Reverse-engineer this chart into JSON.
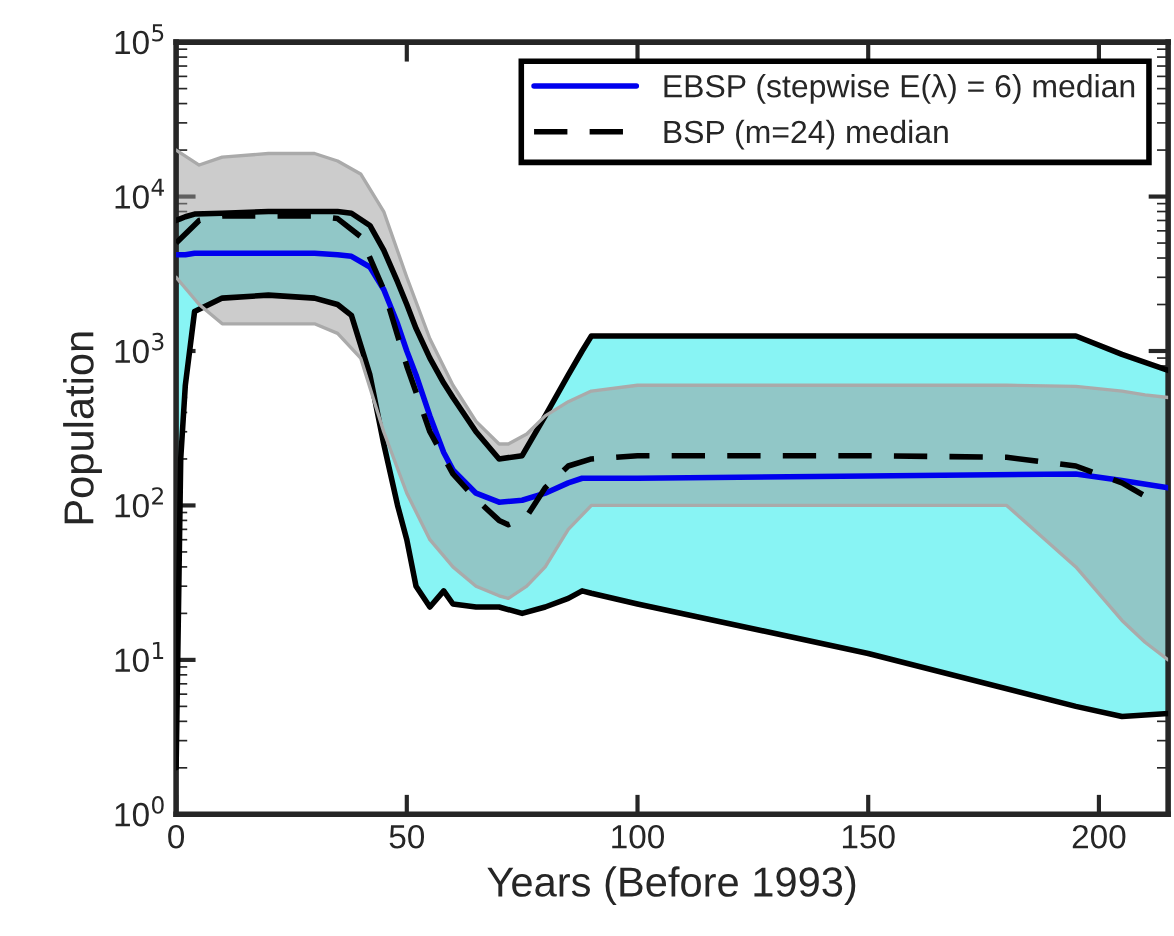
{
  "chart_data": {
    "type": "line",
    "xlabel": "Years (Before 1993)",
    "ylabel": "Population",
    "log": "y",
    "xlim": [
      0,
      215
    ],
    "xticks": [
      0,
      50,
      100,
      150,
      200
    ],
    "ylim": [
      1,
      100000
    ],
    "yticks": [
      {
        "value": 1,
        "label": "10$^{0}$"
      },
      {
        "value": 10,
        "label": "10$^{1}$"
      },
      {
        "value": 100,
        "label": "10$^{2}$"
      },
      {
        "value": 1000,
        "label": "10$^{3}$"
      },
      {
        "value": 10000,
        "label": "10$^{4}$"
      },
      {
        "value": 100000,
        "label": "10$^{5}$"
      }
    ],
    "grid": false,
    "legend": "top right",
    "series": [
      {
        "name": "EBSP (stepwise E(λ) = 6) median",
        "color": "#0000ee",
        "line_style": "solid",
        "x": [
          0,
          1,
          2,
          4,
          10,
          20,
          30,
          35,
          38,
          42,
          45,
          48,
          50,
          52,
          55,
          58,
          60,
          65,
          70,
          75,
          80,
          85,
          88,
          90,
          100,
          150,
          195,
          205,
          215
        ],
        "values": [
          4200,
          4200,
          4200,
          4300,
          4300,
          4300,
          4300,
          4200,
          4100,
          3500,
          2500,
          1500,
          1000,
          700,
          380,
          220,
          170,
          120,
          105,
          108,
          120,
          140,
          150,
          150,
          150,
          155,
          160,
          145,
          130
        ],
        "upper": [
          7000,
          7200,
          7400,
          7700,
          7800,
          8000,
          8000,
          8000,
          7800,
          6500,
          4500,
          2800,
          2000,
          1400,
          900,
          620,
          500,
          300,
          200,
          210,
          380,
          700,
          1000,
          1250,
          1250,
          1250,
          1250,
          950,
          750
        ],
        "lower": [
          2,
          200,
          600,
          1800,
          2200,
          2300,
          2200,
          2000,
          1700,
          700,
          250,
          100,
          60,
          30,
          22,
          28,
          23,
          22,
          22,
          20,
          22,
          25,
          28,
          27,
          23,
          11,
          5,
          4.3,
          4.5
        ]
      },
      {
        "name": "BSP (m=24) median",
        "color": "#000000",
        "line_style": "dashed",
        "x": [
          0,
          5,
          10,
          20,
          30,
          35,
          40,
          45,
          50,
          55,
          60,
          65,
          70,
          72,
          76,
          80,
          85,
          90,
          100,
          150,
          180,
          195,
          205,
          210,
          215
        ],
        "values": [
          5000,
          7000,
          7500,
          7500,
          7500,
          7200,
          5500,
          2500,
          800,
          300,
          160,
          110,
          80,
          75,
          85,
          130,
          180,
          200,
          210,
          210,
          205,
          180,
          140,
          115,
          null
        ],
        "upper": [
          20000,
          16000,
          18000,
          19000,
          19000,
          17000,
          14000,
          8000,
          3000,
          1200,
          600,
          350,
          250,
          250,
          290,
          380,
          470,
          550,
          600,
          600,
          600,
          590,
          550,
          520,
          500
        ],
        "lower": [
          3000,
          2000,
          1500,
          1500,
          1500,
          1300,
          900,
          300,
          120,
          60,
          40,
          30,
          26,
          25,
          30,
          40,
          70,
          100,
          100,
          100,
          100,
          40,
          18,
          13,
          10
        ]
      },
      {
        "color": "#000000",
        "line_style": "solid",
        "x": [
          0,
          1,
          2,
          4,
          10,
          20,
          30,
          35,
          38,
          42,
          45,
          48,
          50,
          52,
          55,
          58,
          60,
          65,
          70,
          75,
          80,
          85,
          88,
          90,
          100,
          150,
          195,
          205,
          215
        ],
        "values": [
          7000,
          7200,
          7400,
          7700,
          7800,
          8000,
          8000,
          8000,
          7800,
          6500,
          4500,
          2800,
          2000,
          1400,
          900,
          620,
          500,
          300,
          200,
          210,
          380,
          700,
          1000,
          1250,
          1250,
          1250,
          1250,
          950,
          750
        ]
      },
      {
        "color": "#000000",
        "line_style": "solid",
        "x": [
          0,
          1,
          2,
          4,
          10,
          20,
          30,
          35,
          38,
          42,
          45,
          48,
          50,
          52,
          55,
          58,
          60,
          65,
          70,
          75,
          80,
          85,
          88,
          90,
          100,
          150,
          195,
          205,
          215
        ],
        "values": [
          2,
          200,
          600,
          1800,
          2200,
          2300,
          2200,
          2000,
          1700,
          700,
          250,
          100,
          60,
          30,
          22,
          28,
          23,
          22,
          22,
          20,
          22,
          25,
          28,
          27,
          23,
          11,
          5,
          4.3,
          4.5
        ]
      },
      {
        "color": "#aaaaaa",
        "line_style": "solid",
        "x": [
          0,
          5,
          10,
          20,
          30,
          35,
          40,
          45,
          50,
          55,
          60,
          65,
          70,
          72,
          76,
          80,
          85,
          90,
          100,
          150,
          180,
          195,
          205,
          210,
          215
        ],
        "values": [
          20000,
          16000,
          18000,
          19000,
          19000,
          17000,
          14000,
          8000,
          3000,
          1200,
          600,
          350,
          250,
          250,
          290,
          380,
          470,
          550,
          600,
          600,
          600,
          590,
          550,
          520,
          500
        ]
      },
      {
        "color": "#aaaaaa",
        "line_style": "solid",
        "x": [
          0,
          5,
          10,
          20,
          30,
          35,
          40,
          45,
          50,
          55,
          60,
          65,
          70,
          72,
          76,
          80,
          85,
          90,
          100,
          150,
          180,
          195,
          205,
          210,
          215
        ],
        "values": [
          3000,
          2000,
          1500,
          1500,
          1500,
          1300,
          900,
          300,
          120,
          60,
          40,
          30,
          26,
          25,
          30,
          40,
          70,
          100,
          100,
          100,
          100,
          40,
          18,
          13,
          10
        ]
      }
    ]
  }
}
